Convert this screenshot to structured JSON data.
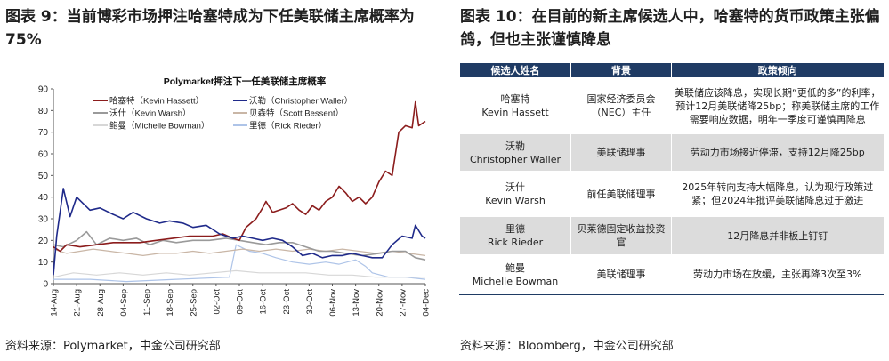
{
  "left_title": "图表 9：当前博彩市场押注哈塞特成为下任美联储主席概率为 75%",
  "right_title": "图表 10：在目前的新主席候选人中，哈塞特的货币政策主张偏鸽，但也主张谨慎降息",
  "left_source": "资料来源：Polymarket，中金公司研究部",
  "right_source": "资料来源：Bloomberg，中金公司研究部",
  "chart_data": {
    "type": "line",
    "title": "Polymarket押注下一任美联储主席概率",
    "ylim": [
      0,
      90
    ],
    "yticks": [
      0,
      10,
      20,
      30,
      40,
      50,
      60,
      70,
      80,
      90
    ],
    "x_start": "2025-08-14",
    "x_end": "2025-12-04",
    "xticks": [
      "14-Aug",
      "21-Aug",
      "28-Aug",
      "04-Sep",
      "11-Sep",
      "18-Sep",
      "25-Sep",
      "02-Oct",
      "09-Oct",
      "16-Oct",
      "23-Oct",
      "30-Oct",
      "06-Nov",
      "13-Nov",
      "20-Nov",
      "27-Nov",
      "04-Dec"
    ],
    "legend": "top-left",
    "series": [
      {
        "name": "哈塞特（Kevin Hassett）",
        "color": "#8b1c1c",
        "width": 1.6,
        "points": [
          [
            "2025-08-14",
            17
          ],
          [
            "2025-08-16",
            15
          ],
          [
            "2025-08-18",
            18
          ],
          [
            "2025-08-22",
            17
          ],
          [
            "2025-08-27",
            18
          ],
          [
            "2025-09-01",
            19
          ],
          [
            "2025-09-05",
            19
          ],
          [
            "2025-09-09",
            19
          ],
          [
            "2025-09-14",
            20
          ],
          [
            "2025-09-19",
            21
          ],
          [
            "2025-09-24",
            22
          ],
          [
            "2025-09-28",
            22
          ],
          [
            "2025-10-01",
            22
          ],
          [
            "2025-10-04",
            23
          ],
          [
            "2025-10-07",
            21
          ],
          [
            "2025-10-09",
            20
          ],
          [
            "2025-10-11",
            26
          ],
          [
            "2025-10-14",
            30
          ],
          [
            "2025-10-16",
            35
          ],
          [
            "2025-10-17",
            38
          ],
          [
            "2025-10-19",
            33
          ],
          [
            "2025-10-21",
            34
          ],
          [
            "2025-10-23",
            35
          ],
          [
            "2025-10-25",
            37
          ],
          [
            "2025-10-27",
            34
          ],
          [
            "2025-10-29",
            32
          ],
          [
            "2025-10-31",
            36
          ],
          [
            "2025-11-02",
            34
          ],
          [
            "2025-11-04",
            38
          ],
          [
            "2025-11-06",
            40
          ],
          [
            "2025-11-08",
            45
          ],
          [
            "2025-11-10",
            42
          ],
          [
            "2025-11-12",
            38
          ],
          [
            "2025-11-14",
            40
          ],
          [
            "2025-11-16",
            37
          ],
          [
            "2025-11-18",
            40
          ],
          [
            "2025-11-20",
            47
          ],
          [
            "2025-11-22",
            52
          ],
          [
            "2025-11-24",
            50
          ],
          [
            "2025-11-26",
            70
          ],
          [
            "2025-11-28",
            73
          ],
          [
            "2025-11-30",
            72
          ],
          [
            "2025-12-01",
            84
          ],
          [
            "2025-12-02",
            73
          ],
          [
            "2025-12-04",
            75
          ]
        ]
      },
      {
        "name": "沃勒（Christopher Waller）",
        "color": "#1f2a8a",
        "width": 1.6,
        "points": [
          [
            "2025-08-14",
            4
          ],
          [
            "2025-08-15",
            22
          ],
          [
            "2025-08-17",
            44
          ],
          [
            "2025-08-19",
            31
          ],
          [
            "2025-08-21",
            40
          ],
          [
            "2025-08-25",
            34
          ],
          [
            "2025-08-28",
            35
          ],
          [
            "2025-09-01",
            32
          ],
          [
            "2025-09-04",
            30
          ],
          [
            "2025-09-07",
            33
          ],
          [
            "2025-09-11",
            30
          ],
          [
            "2025-09-15",
            28
          ],
          [
            "2025-09-18",
            29
          ],
          [
            "2025-09-22",
            28
          ],
          [
            "2025-09-25",
            26
          ],
          [
            "2025-09-29",
            27
          ],
          [
            "2025-10-03",
            23
          ],
          [
            "2025-10-07",
            21
          ],
          [
            "2025-10-10",
            22
          ],
          [
            "2025-10-13",
            21
          ],
          [
            "2025-10-16",
            20
          ],
          [
            "2025-10-19",
            21
          ],
          [
            "2025-10-22",
            20
          ],
          [
            "2025-10-25",
            17
          ],
          [
            "2025-10-28",
            13
          ],
          [
            "2025-10-31",
            14
          ],
          [
            "2025-11-03",
            12
          ],
          [
            "2025-11-06",
            13
          ],
          [
            "2025-11-09",
            13
          ],
          [
            "2025-11-12",
            14
          ],
          [
            "2025-11-15",
            13
          ],
          [
            "2025-11-18",
            12
          ],
          [
            "2025-11-21",
            12
          ],
          [
            "2025-11-24",
            18
          ],
          [
            "2025-11-27",
            22
          ],
          [
            "2025-11-30",
            21
          ],
          [
            "2025-12-01",
            27
          ],
          [
            "2025-12-03",
            22
          ],
          [
            "2025-12-04",
            21
          ]
        ]
      },
      {
        "name": "沃什（Kevin Warsh）",
        "color": "#9a9a9a",
        "width": 1.6,
        "points": [
          [
            "2025-08-14",
            18
          ],
          [
            "2025-08-17",
            17
          ],
          [
            "2025-08-21",
            20
          ],
          [
            "2025-08-24",
            24
          ],
          [
            "2025-08-27",
            18
          ],
          [
            "2025-08-31",
            21
          ],
          [
            "2025-09-04",
            20
          ],
          [
            "2025-09-08",
            21
          ],
          [
            "2025-09-12",
            18
          ],
          [
            "2025-09-16",
            20
          ],
          [
            "2025-09-20",
            19
          ],
          [
            "2025-09-25",
            20
          ],
          [
            "2025-09-30",
            20
          ],
          [
            "2025-10-05",
            21
          ],
          [
            "2025-10-09",
            20
          ],
          [
            "2025-10-13",
            19
          ],
          [
            "2025-10-17",
            18
          ],
          [
            "2025-10-21",
            19
          ],
          [
            "2025-10-25",
            19
          ],
          [
            "2025-10-29",
            17
          ],
          [
            "2025-11-02",
            15
          ],
          [
            "2025-11-06",
            15
          ],
          [
            "2025-11-10",
            14
          ],
          [
            "2025-11-15",
            13
          ],
          [
            "2025-11-20",
            14
          ],
          [
            "2025-11-24",
            15
          ],
          [
            "2025-11-28",
            15
          ],
          [
            "2025-12-01",
            12
          ],
          [
            "2025-12-04",
            11
          ]
        ]
      },
      {
        "name": "贝森特（Scott Bessent）",
        "color": "#c9b6a6",
        "width": 1.2,
        "points": [
          [
            "2025-08-14",
            16
          ],
          [
            "2025-08-18",
            14
          ],
          [
            "2025-08-22",
            15
          ],
          [
            "2025-08-26",
            16
          ],
          [
            "2025-08-31",
            15
          ],
          [
            "2025-09-05",
            14
          ],
          [
            "2025-09-10",
            13
          ],
          [
            "2025-09-15",
            14
          ],
          [
            "2025-09-20",
            14
          ],
          [
            "2025-09-25",
            15
          ],
          [
            "2025-09-30",
            14
          ],
          [
            "2025-10-05",
            15
          ],
          [
            "2025-10-10",
            16
          ],
          [
            "2025-10-15",
            15
          ],
          [
            "2025-10-20",
            16
          ],
          [
            "2025-10-25",
            15
          ],
          [
            "2025-10-30",
            16
          ],
          [
            "2025-11-04",
            15
          ],
          [
            "2025-11-09",
            16
          ],
          [
            "2025-11-14",
            15
          ],
          [
            "2025-11-19",
            14
          ],
          [
            "2025-11-24",
            15
          ],
          [
            "2025-11-29",
            14
          ],
          [
            "2025-12-04",
            13
          ]
        ]
      },
      {
        "name": "鲍曼（Michelle Bowman）",
        "color": "#d7d7d7",
        "width": 1.2,
        "points": [
          [
            "2025-08-14",
            3
          ],
          [
            "2025-08-20",
            5
          ],
          [
            "2025-08-27",
            4
          ],
          [
            "2025-09-03",
            5
          ],
          [
            "2025-09-10",
            4
          ],
          [
            "2025-09-17",
            5
          ],
          [
            "2025-09-24",
            4
          ],
          [
            "2025-10-01",
            5
          ],
          [
            "2025-10-08",
            6
          ],
          [
            "2025-10-15",
            5
          ],
          [
            "2025-10-22",
            5
          ],
          [
            "2025-10-29",
            5
          ],
          [
            "2025-11-05",
            4
          ],
          [
            "2025-11-12",
            4
          ],
          [
            "2025-11-19",
            3
          ],
          [
            "2025-11-26",
            3
          ],
          [
            "2025-12-04",
            3
          ]
        ]
      },
      {
        "name": "里德（Rick Rieder）",
        "color": "#aec4e8",
        "width": 1.2,
        "points": [
          [
            "2025-08-14",
            2
          ],
          [
            "2025-08-25",
            2
          ],
          [
            "2025-09-05",
            1
          ],
          [
            "2025-09-20",
            2
          ],
          [
            "2025-10-06",
            3
          ],
          [
            "2025-10-08",
            18
          ],
          [
            "2025-10-12",
            15
          ],
          [
            "2025-10-16",
            14
          ],
          [
            "2025-10-20",
            12
          ],
          [
            "2025-10-25",
            10
          ],
          [
            "2025-10-30",
            9
          ],
          [
            "2025-11-04",
            10
          ],
          [
            "2025-11-08",
            9
          ],
          [
            "2025-11-13",
            11
          ],
          [
            "2025-11-16",
            8
          ],
          [
            "2025-11-18",
            5
          ],
          [
            "2025-11-23",
            3
          ],
          [
            "2025-11-28",
            3
          ],
          [
            "2025-12-04",
            2
          ]
        ]
      }
    ]
  },
  "table": {
    "headers": [
      "候选人姓名",
      "背景",
      "政策倾向"
    ],
    "rows": [
      {
        "name_cn": "哈塞特",
        "name_en": "Kevin Hassett",
        "background": "国家经济委员会（NEC）主任",
        "policy": "美联储应该降息，实现长期“更低的多”的利率，预计12月美联储降25bp；称美联储主席的工作需要响应数据，明年一季度可谨慎再降息"
      },
      {
        "name_cn": "沃勒",
        "name_en": "Christopher Waller",
        "background": "美联储理事",
        "policy": "劳动力市场接近停滞，支持12月降25bp"
      },
      {
        "name_cn": "沃什",
        "name_en": "Kevin Warsh",
        "background": "前任美联储理事",
        "policy": "2025年转向支持大幅降息，认为现行政策过紧；但2024年批评美联储降息过于激进"
      },
      {
        "name_cn": "里德",
        "name_en": "Rick Rieder",
        "background": "贝莱德固定收益投资官",
        "policy": "12月降息并非板上钉钉"
      },
      {
        "name_cn": "鲍曼",
        "name_en": "Michelle Bowman",
        "background": "美联储理事",
        "policy": "劳动力市场在放缓，主张再降3次至3%"
      }
    ]
  }
}
